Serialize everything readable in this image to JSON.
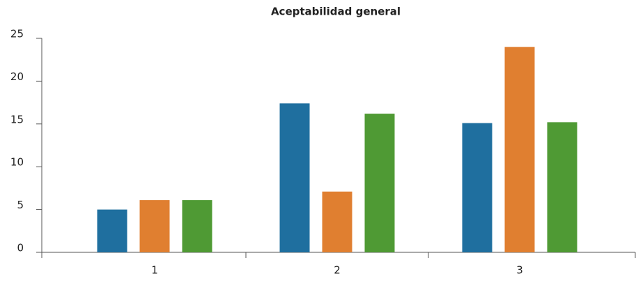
{
  "chart_data": {
    "type": "bar",
    "title": "Aceptabilidad general",
    "categories": [
      "1",
      "2",
      "3"
    ],
    "series": [
      {
        "color": "#1f6f9f",
        "values": [
          5,
          17.4,
          15.1
        ]
      },
      {
        "color": "#e07f30",
        "values": [
          6.1,
          7.1,
          24
        ]
      },
      {
        "color": "#4f9a34",
        "values": [
          6.1,
          16.2,
          15.2
        ]
      }
    ],
    "ylim": [
      0,
      25
    ],
    "yticks": [
      0,
      5,
      10,
      15,
      20,
      25
    ],
    "grid": false
  }
}
